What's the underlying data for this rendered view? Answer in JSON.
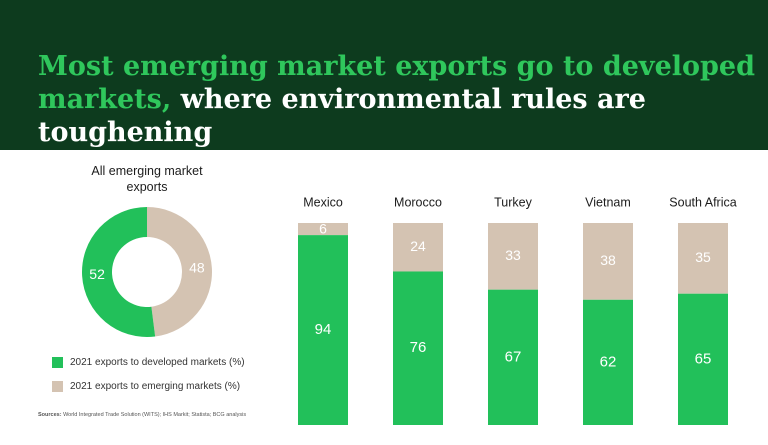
{
  "headline": {
    "accent": "Most emerging market exports go to developed markets,",
    "rest": "where environmental rules are toughening"
  },
  "colors": {
    "developed": "#22c05a",
    "emerging": "#d4c3b2",
    "header_bg": "#0d3b1e",
    "accent_text": "#2fc75c"
  },
  "legend": {
    "developed": "2021 exports to developed markets (%)",
    "emerging": "2021 exports to emerging markets (%)"
  },
  "sources": {
    "label": "Sources:",
    "text": "World Integrated Trade Solution (WITS); IHS Markit; Statista; BCG analysis"
  },
  "chart_data": [
    {
      "type": "pie",
      "title": "All emerging market exports",
      "donut": true,
      "categories": [
        "2021 exports to developed markets (%)",
        "2021 exports to emerging markets (%)"
      ],
      "values": [
        52,
        48
      ]
    },
    {
      "type": "bar",
      "stacked": true,
      "normalized": true,
      "categories": [
        "Mexico",
        "Morocco",
        "Turkey",
        "Vietnam",
        "South Africa"
      ],
      "series": [
        {
          "name": "2021 exports to developed markets (%)",
          "values": [
            94,
            76,
            67,
            62,
            65
          ]
        },
        {
          "name": "2021 exports to emerging markets (%)",
          "values": [
            6,
            24,
            33,
            38,
            35
          ]
        }
      ],
      "ylim": [
        0,
        100
      ]
    }
  ]
}
